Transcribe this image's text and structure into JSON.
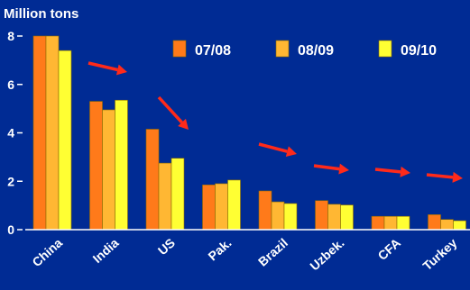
{
  "chart_data": {
    "type": "bar",
    "title": "",
    "ylabel": "Million tons",
    "xlabel": "",
    "ylim": [
      0,
      8
    ],
    "yticks": [
      0,
      2,
      4,
      6,
      8
    ],
    "grid": false,
    "legend_position": "top-right",
    "categories": [
      "China",
      "India",
      "US",
      "Pak.",
      "Brazil",
      "Uzbek.",
      "CFA",
      "Turkey"
    ],
    "series": [
      {
        "name": "07/08",
        "color": "#ff7a1a",
        "values": [
          8.0,
          5.3,
          4.15,
          1.85,
          1.6,
          1.2,
          0.55,
          0.62
        ]
      },
      {
        "name": "08/09",
        "color": "#ffb733",
        "values": [
          8.0,
          4.95,
          2.75,
          1.9,
          1.15,
          1.05,
          0.55,
          0.42
        ]
      },
      {
        "name": "09/10",
        "color": "#ffff33",
        "values": [
          7.4,
          5.35,
          2.95,
          2.05,
          1.08,
          1.02,
          0.55,
          0.37
        ]
      }
    ],
    "annotations": [
      {
        "type": "arrow",
        "color": "#ff2a1a",
        "description": "downward trend arrow"
      }
    ]
  },
  "colors": {
    "background": "#002b94",
    "text": "#ffffff",
    "arrow": "#ff2a1a"
  }
}
